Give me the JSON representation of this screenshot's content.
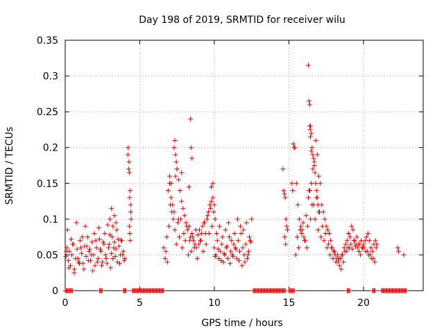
{
  "chart_data": {
    "type": "scatter",
    "title": "Day 198 of 2019, SRMTID for receiver wilu",
    "xlabel": "GPS time / hours",
    "ylabel": "SRMTID / TECUs",
    "xlim": [
      0,
      24
    ],
    "ylim": [
      0,
      0.35
    ],
    "x_ticks": [
      0,
      5,
      10,
      15,
      20
    ],
    "x_tick_labels": [
      "0",
      "5",
      "10",
      "15",
      "20"
    ],
    "y_ticks": [
      0,
      0.05,
      0.1,
      0.15,
      0.2,
      0.25,
      0.3,
      0.35
    ],
    "y_tick_labels": [
      "0",
      "0.05",
      "0.1",
      "0.15",
      "0.2",
      "0.25",
      "0.3",
      "0.35"
    ],
    "grid": true,
    "marker": "+",
    "color": "#e00000",
    "series": [
      {
        "name": "SRMTID",
        "x": [
          0.05,
          0.12,
          0.2,
          0.28,
          0.35,
          0.45,
          0.55,
          0.62,
          0.7,
          0.8,
          0.9,
          1.0,
          1.1,
          1.2,
          1.3,
          1.4,
          1.5,
          1.6,
          1.7,
          1.8,
          1.9,
          2.0,
          2.1,
          2.2,
          2.3,
          2.4,
          2.5,
          2.6,
          2.7,
          2.8,
          2.9,
          3.0,
          3.1,
          3.2,
          3.3,
          3.4,
          3.5,
          3.6,
          3.7,
          3.8,
          3.9,
          4.0,
          0.15,
          0.4,
          0.75,
          1.05,
          1.35,
          1.65,
          1.95,
          2.25,
          2.55,
          2.85,
          3.15,
          3.45,
          3.75,
          0.25,
          0.6,
          0.95,
          1.25,
          1.55,
          1.85,
          2.15,
          2.45,
          2.75,
          3.05,
          3.35,
          3.65,
          3.95,
          0.1,
          0.5,
          0.85,
          1.15,
          1.45,
          1.75,
          2.05,
          2.35,
          2.65,
          2.95,
          3.25,
          3.55,
          3.85,
          3.0,
          3.1,
          3.2,
          3.3,
          3.4,
          4.2,
          4.22,
          4.25,
          4.28,
          4.3,
          4.32,
          4.35,
          4.38,
          4.4,
          4.42,
          4.3,
          4.33,
          4.36,
          6.6,
          6.7,
          6.8,
          6.9,
          7.0,
          7.1,
          7.2,
          7.3,
          7.4,
          7.5,
          7.6,
          7.7,
          7.8,
          7.9,
          8.0,
          8.1,
          8.2,
          8.3,
          8.4,
          8.5,
          8.6,
          8.7,
          8.8,
          8.9,
          9.0,
          9.1,
          9.2,
          9.3,
          9.4,
          9.5,
          9.6,
          9.7,
          9.8,
          9.9,
          6.75,
          6.95,
          7.15,
          7.35,
          7.55,
          7.75,
          7.95,
          8.15,
          8.35,
          8.55,
          8.75,
          8.95,
          9.15,
          9.35,
          9.55,
          9.75,
          6.85,
          7.05,
          7.25,
          7.45,
          7.65,
          7.85,
          8.05,
          8.25,
          8.45,
          8.65,
          8.85,
          9.05,
          9.25,
          9.45,
          9.65,
          9.85,
          7.3,
          7.35,
          7.4,
          7.45,
          7.5,
          8.4,
          8.45,
          8.5,
          7.0,
          7.1,
          7.6,
          7.8,
          8.3,
          9.8,
          9.9,
          10.0,
          10.1,
          10.2,
          10.3,
          10.4,
          10.5,
          10.6,
          10.7,
          10.8,
          10.9,
          11.0,
          11.1,
          11.2,
          11.3,
          11.4,
          11.5,
          11.6,
          11.7,
          11.8,
          11.9,
          12.0,
          12.1,
          12.2,
          12.3,
          12.4,
          12.5,
          10.05,
          10.25,
          10.45,
          10.65,
          10.85,
          11.05,
          11.25,
          11.45,
          11.65,
          11.85,
          12.05,
          12.25,
          12.45,
          10.15,
          10.35,
          10.55,
          10.75,
          10.95,
          11.15,
          11.35,
          11.55,
          11.75,
          11.95,
          12.15,
          12.35,
          9.95,
          10.0,
          10.05,
          14.6,
          14.65,
          14.7,
          14.75,
          14.8,
          14.85,
          14.9,
          14.72,
          14.78,
          15.4,
          15.5,
          15.6,
          15.7,
          15.8,
          15.9,
          16.0,
          16.1,
          16.2,
          16.3,
          16.4,
          16.5,
          16.6,
          16.7,
          16.8,
          16.9,
          17.0,
          17.1,
          17.2,
          17.3,
          17.4,
          17.5,
          17.6,
          17.7,
          17.8,
          17.9,
          18.0,
          18.1,
          18.2,
          18.3,
          18.4,
          18.5,
          18.6,
          18.7,
          18.8,
          18.9,
          19.0,
          19.1,
          19.2,
          19.3,
          19.4,
          19.5,
          19.6,
          19.7,
          19.8,
          19.9,
          20.0,
          20.1,
          20.2,
          20.3,
          20.4,
          20.5,
          20.6,
          20.7,
          20.8,
          20.9,
          15.45,
          15.65,
          15.85,
          16.05,
          16.25,
          16.45,
          16.65,
          16.85,
          17.05,
          17.25,
          17.45,
          17.65,
          17.85,
          18.05,
          18.25,
          18.45,
          18.65,
          18.85,
          19.05,
          19.25,
          19.45,
          19.65,
          19.85,
          20.05,
          20.25,
          20.45,
          20.65,
          20.85,
          15.55,
          15.75,
          15.95,
          16.15,
          16.35,
          16.55,
          16.75,
          16.95,
          17.15,
          17.35,
          17.55,
          17.75,
          17.95,
          18.15,
          18.35,
          18.55,
          18.75,
          18.95,
          19.15,
          19.35,
          19.55,
          19.75,
          19.95,
          20.15,
          20.35,
          20.55,
          20.75,
          16.3,
          16.35,
          16.4,
          16.45,
          16.5,
          16.55,
          16.6,
          16.65,
          16.7,
          16.75,
          16.8,
          16.85,
          16.9,
          16.95,
          17.0,
          16.4,
          16.42,
          16.44,
          16.5,
          15.3,
          15.35,
          15.2,
          15.25,
          22.3,
          22.35,
          22.7
        ],
        "y": [
          0.048,
          0.06,
          0.042,
          0.055,
          0.035,
          0.05,
          0.065,
          0.03,
          0.045,
          0.058,
          0.04,
          0.07,
          0.052,
          0.038,
          0.062,
          0.048,
          0.075,
          0.055,
          0.042,
          0.068,
          0.05,
          0.035,
          0.06,
          0.045,
          0.072,
          0.055,
          0.04,
          0.065,
          0.05,
          0.038,
          0.06,
          0.078,
          0.052,
          0.045,
          0.068,
          0.058,
          0.04,
          0.062,
          0.05,
          0.07,
          0.055,
          0.045,
          0.085,
          0.072,
          0.095,
          0.06,
          0.09,
          0.058,
          0.08,
          0.088,
          0.068,
          0.092,
          0.075,
          0.085,
          0.07,
          0.032,
          0.025,
          0.038,
          0.03,
          0.042,
          0.028,
          0.04,
          0.035,
          0.045,
          0.032,
          0.048,
          0.038,
          0.042,
          0.055,
          0.065,
          0.045,
          0.075,
          0.062,
          0.05,
          0.07,
          0.058,
          0.08,
          0.065,
          0.06,
          0.072,
          0.05,
          0.1,
          0.115,
          0.09,
          0.105,
          0.095,
          0.19,
          0.2,
          0.17,
          0.18,
          0.165,
          0.13,
          0.14,
          0.12,
          0.11,
          0.1,
          0.09,
          0.08,
          0.07,
          0.06,
          0.045,
          0.075,
          0.14,
          0.15,
          0.13,
          0.12,
          0.11,
          0.16,
          0.17,
          0.1,
          0.14,
          0.125,
          0.115,
          0.105,
          0.095,
          0.085,
          0.09,
          0.075,
          0.08,
          0.07,
          0.065,
          0.06,
          0.078,
          0.085,
          0.07,
          0.09,
          0.095,
          0.08,
          0.1,
          0.11,
          0.12,
          0.125,
          0.13,
          0.055,
          0.09,
          0.11,
          0.085,
          0.095,
          0.1,
          0.08,
          0.09,
          0.07,
          0.075,
          0.085,
          0.065,
          0.08,
          0.095,
          0.105,
          0.115,
          0.04,
          0.12,
          0.1,
          0.065,
          0.075,
          0.06,
          0.07,
          0.05,
          0.055,
          0.06,
          0.045,
          0.07,
          0.055,
          0.065,
          0.08,
          0.09,
          0.2,
          0.21,
          0.19,
          0.18,
          0.17,
          0.24,
          0.2,
          0.185,
          0.16,
          0.15,
          0.155,
          0.165,
          0.145,
          0.145,
          0.15,
          0.06,
          0.05,
          0.07,
          0.045,
          0.055,
          0.065,
          0.04,
          0.05,
          0.06,
          0.045,
          0.075,
          0.055,
          0.05,
          0.065,
          0.06,
          0.045,
          0.07,
          0.055,
          0.08,
          0.06,
          0.05,
          0.065,
          0.045,
          0.055,
          0.07,
          0.1,
          0.048,
          0.058,
          0.042,
          0.052,
          0.062,
          0.038,
          0.048,
          0.058,
          0.042,
          0.035,
          0.04,
          0.05,
          0.068,
          0.08,
          0.09,
          0.075,
          0.085,
          0.095,
          0.07,
          0.08,
          0.1,
          0.09,
          0.085,
          0.095,
          0.075,
          0.11,
          0.12,
          0.1,
          0.17,
          0.14,
          0.135,
          0.13,
          0.1,
          0.09,
          0.085,
          0.075,
          0.065,
          0.2,
          0.15,
          0.12,
          0.1,
          0.09,
          0.085,
          0.075,
          0.07,
          0.06,
          0.13,
          0.14,
          0.15,
          0.17,
          0.18,
          0.21,
          0.19,
          0.16,
          0.15,
          0.12,
          0.11,
          0.1,
          0.09,
          0.085,
          0.08,
          0.07,
          0.06,
          0.055,
          0.05,
          0.045,
          0.04,
          0.035,
          0.03,
          0.05,
          0.06,
          0.065,
          0.07,
          0.08,
          0.075,
          0.09,
          0.085,
          0.07,
          0.065,
          0.06,
          0.055,
          0.05,
          0.06,
          0.065,
          0.07,
          0.075,
          0.08,
          0.07,
          0.06,
          0.055,
          0.065,
          0.07,
          0.065,
          0.05,
          0.06,
          0.08,
          0.07,
          0.09,
          0.1,
          0.12,
          0.13,
          0.11,
          0.09,
          0.08,
          0.065,
          0.06,
          0.055,
          0.05,
          0.045,
          0.04,
          0.055,
          0.06,
          0.058,
          0.062,
          0.065,
          0.07,
          0.06,
          0.055,
          0.05,
          0.045,
          0.06,
          0.075,
          0.085,
          0.095,
          0.105,
          0.14,
          0.12,
          0.1,
          0.085,
          0.075,
          0.07,
          0.06,
          0.05,
          0.045,
          0.04,
          0.045,
          0.05,
          0.055,
          0.06,
          0.065,
          0.07,
          0.075,
          0.065,
          0.06,
          0.055,
          0.05,
          0.045,
          0.04,
          0.315,
          0.265,
          0.26,
          0.23,
          0.22,
          0.2,
          0.19,
          0.185,
          0.175,
          0.165,
          0.15,
          0.14,
          0.13,
          0.12,
          0.11,
          0.23,
          0.225,
          0.215,
          0.195,
          0.205,
          0.2,
          0.15,
          0.14,
          0.06,
          0.055,
          0.05
        ]
      }
    ],
    "zero_band_x": [
      [
        0.0,
        0.5
      ],
      [
        2.3,
        2.5
      ],
      [
        3.9,
        4.1
      ],
      [
        4.5,
        6.6
      ],
      [
        12.6,
        14.8
      ],
      [
        15.0,
        15.4
      ],
      [
        18.9,
        19.1
      ],
      [
        20.6,
        20.8
      ],
      [
        21.2,
        22.9
      ]
    ]
  }
}
